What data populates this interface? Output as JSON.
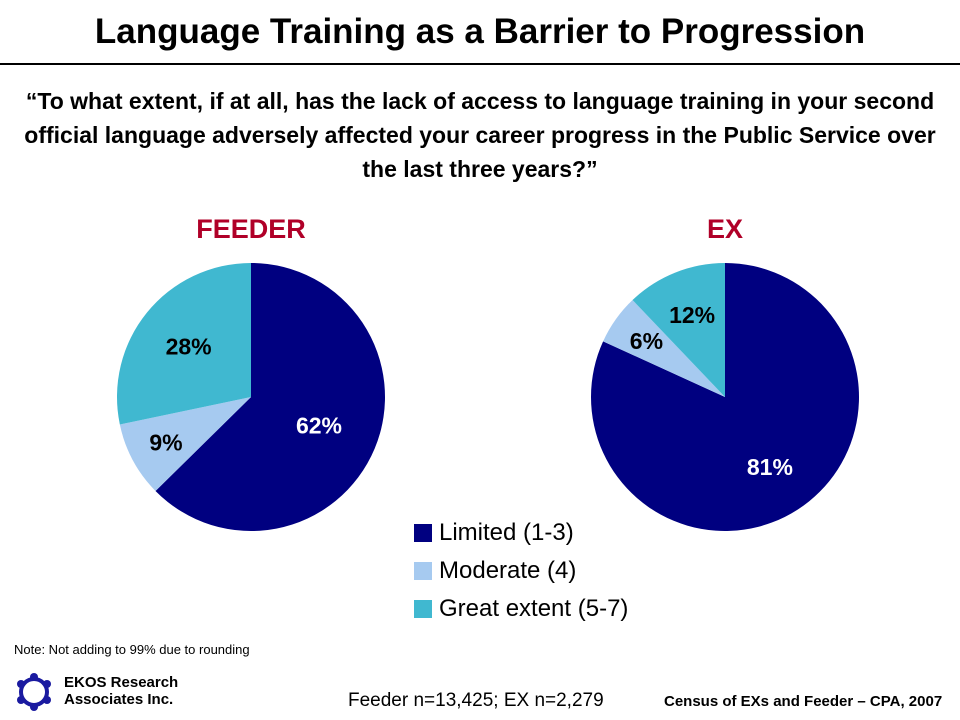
{
  "title": "Language Training as a Barrier to Progression",
  "question": "“To what extent, if at all, has the lack of access to language training in your second official language adversely affected your career progress in the Public Service over the last three years?”",
  "colors": {
    "limited": "#000080",
    "moderate": "#a6caf0",
    "great": "#40b8d0",
    "title_red": "#b00028"
  },
  "chart_data": [
    {
      "type": "pie",
      "title": "FEEDER",
      "categories": [
        "Limited (1-3)",
        "Moderate (4)",
        "Great extent (5-7)"
      ],
      "values": [
        62,
        9,
        28
      ],
      "labels": [
        "62%",
        "9%",
        "28%"
      ]
    },
    {
      "type": "pie",
      "title": "EX",
      "categories": [
        "Limited (1-3)",
        "Moderate (4)",
        "Great extent (5-7)"
      ],
      "values": [
        81,
        6,
        12
      ],
      "labels": [
        "81%",
        "6%",
        "12%"
      ]
    }
  ],
  "legend": [
    "Limited (1-3)",
    "Moderate (4)",
    "Great extent (5-7)"
  ],
  "note": "Note: Not adding to 99% due to rounding",
  "logo": {
    "line1": "EKOS Research",
    "line2": "Associates Inc."
  },
  "sample": "Feeder n=13,425; EX n=2,279",
  "source": "Census of EXs and Feeder – CPA, 2007"
}
